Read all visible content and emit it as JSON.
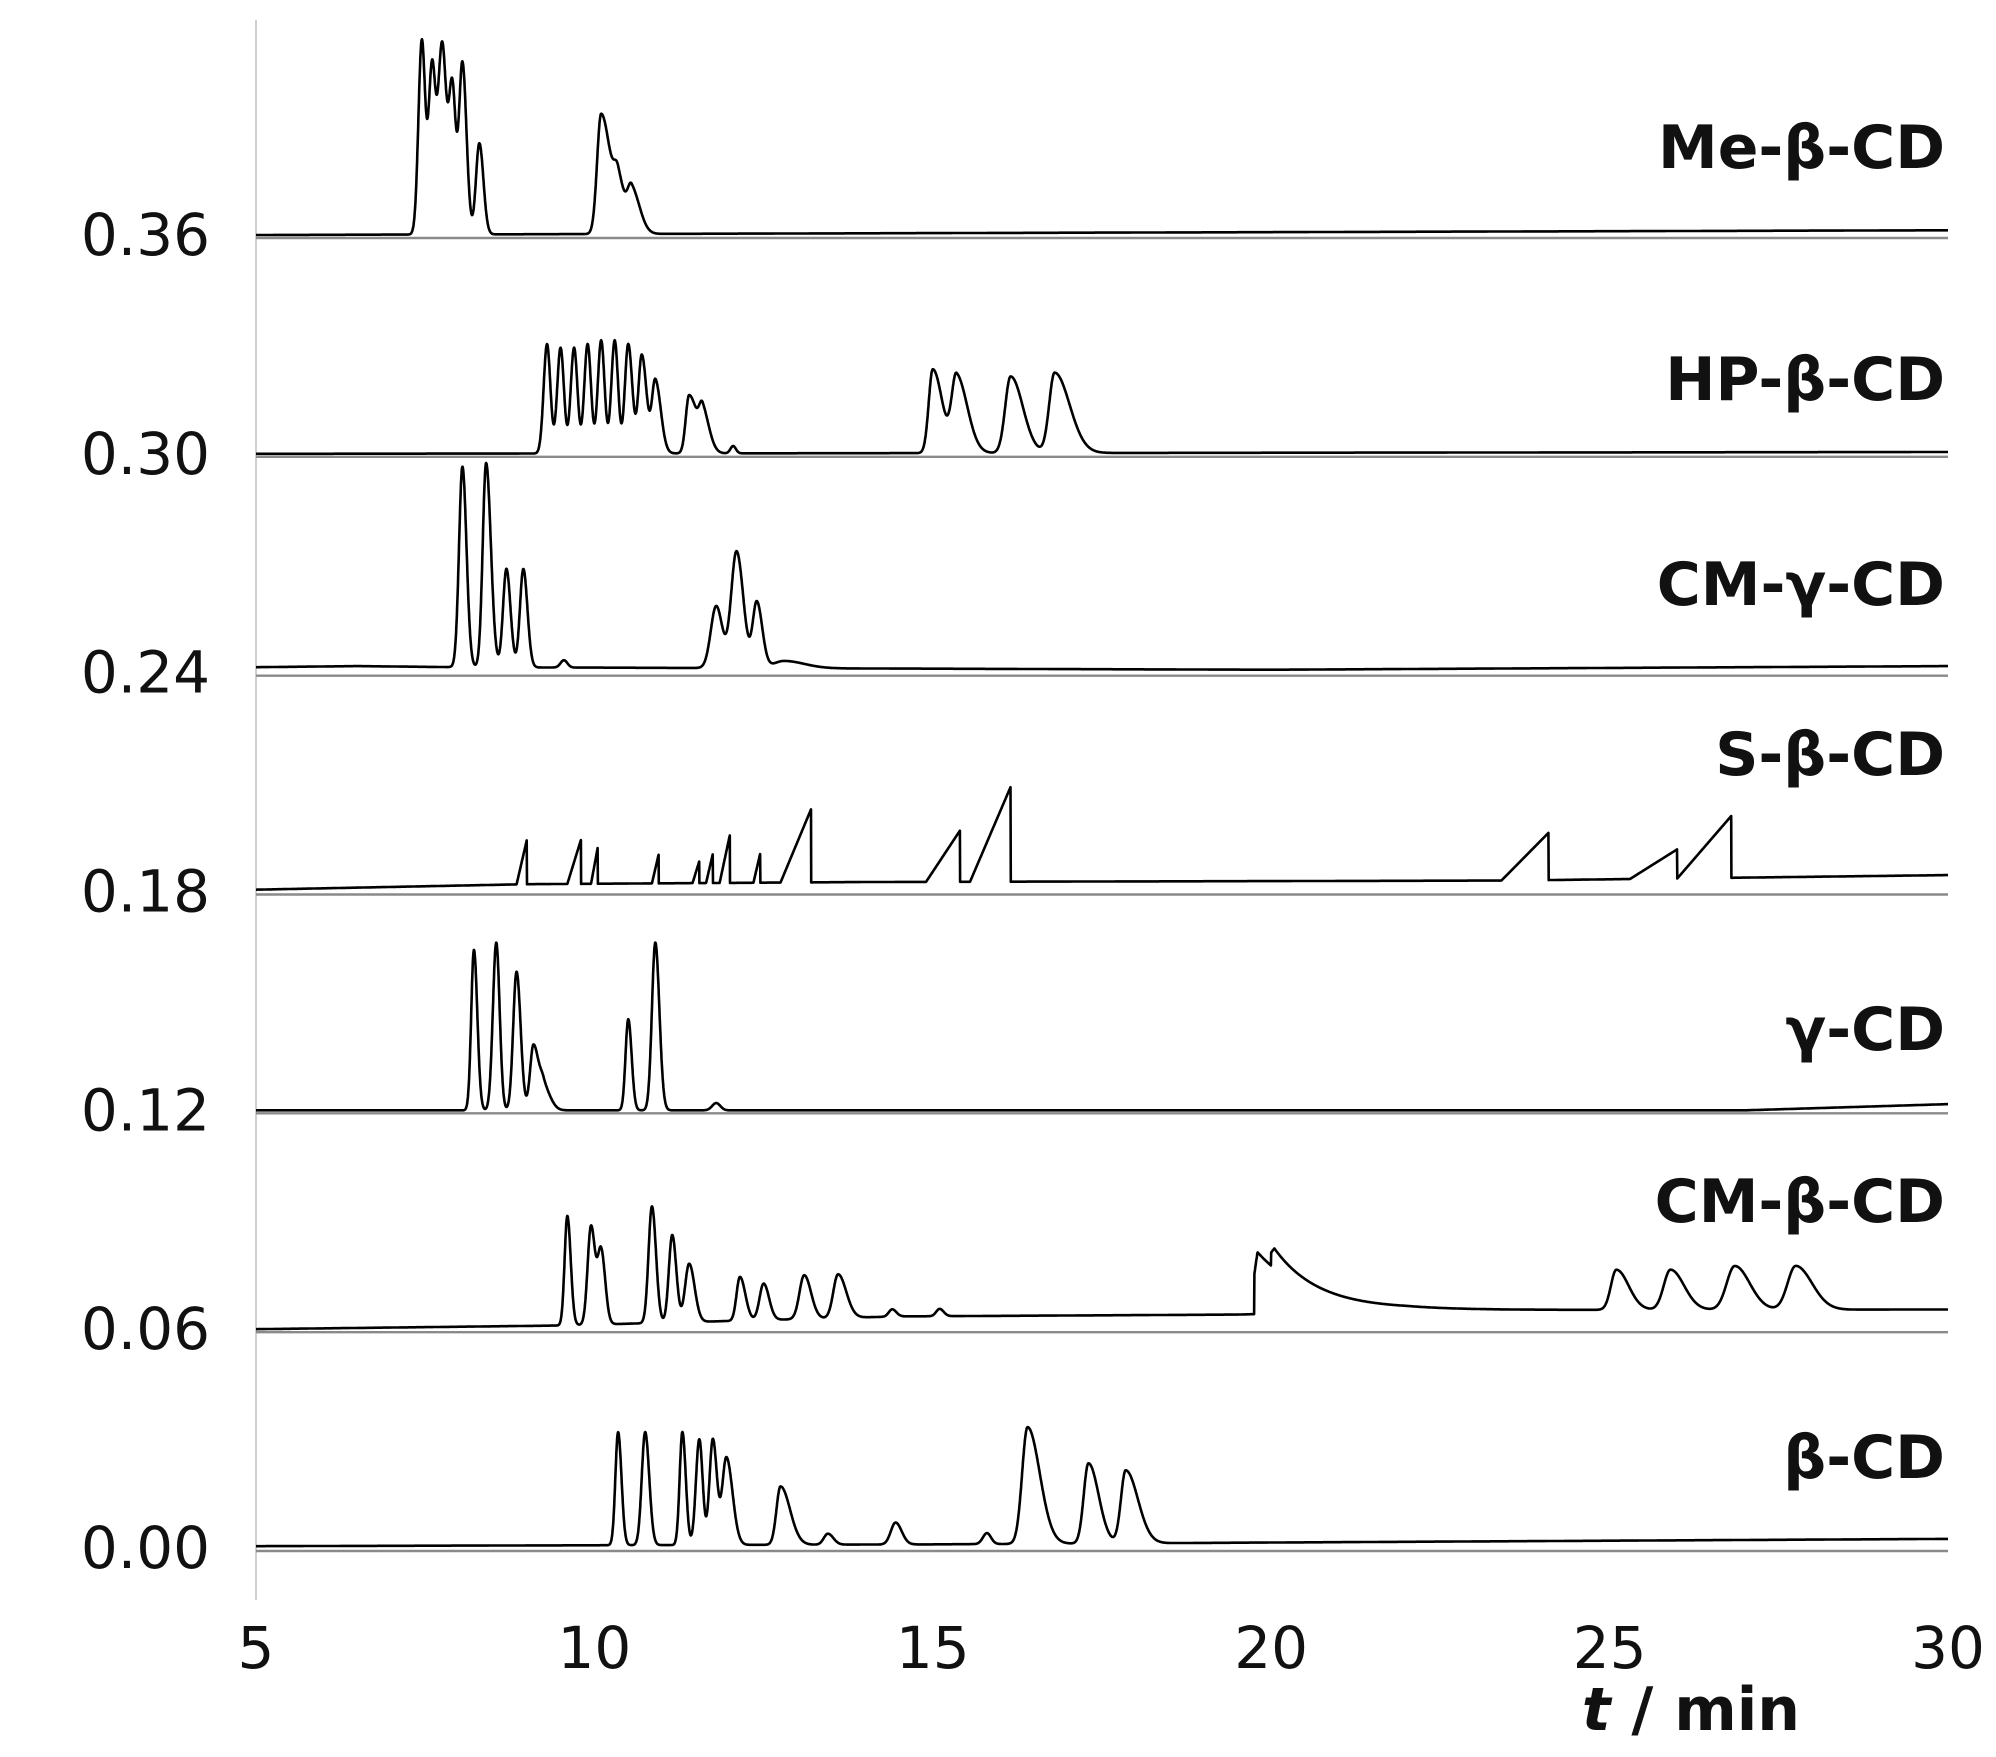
{
  "chart_data": {
    "type": "line",
    "title": "",
    "xlabel_italic": "t",
    "xlabel_rest": " / min",
    "ylabel": "",
    "xlim": [
      5,
      30
    ],
    "ylim": [
      -0.004,
      0.42
    ],
    "x_ticks": [
      5,
      10,
      15,
      20,
      25,
      30
    ],
    "x_tick_labels": [
      "5",
      "10",
      "15",
      "20",
      "25",
      "30"
    ],
    "y_ticks": [
      0.0,
      0.06,
      0.12,
      0.18,
      0.24,
      0.3,
      0.36
    ],
    "y_tick_labels": [
      "0.00",
      "0.06",
      "0.12",
      "0.18",
      "0.24",
      "0.30",
      "0.36"
    ],
    "grid": false,
    "legend": "none",
    "series": [
      {
        "name": "Me-β-CD",
        "offset": 0.36,
        "baseline": [
          [
            5,
            0.36
          ],
          [
            30,
            0.3613
          ]
        ],
        "peaks": [
          [
            7.45,
            0.053,
            0.05,
            0.05
          ],
          [
            7.75,
            0.052,
            0.06,
            0.06
          ],
          [
            8.05,
            0.047,
            0.05,
            0.06
          ],
          [
            8.3,
            0.025,
            0.05,
            0.06
          ],
          [
            7.6,
            0.045,
            0.05,
            0.05
          ],
          [
            7.9,
            0.04,
            0.05,
            0.05
          ],
          [
            10.1,
            0.033,
            0.06,
            0.14
          ],
          [
            10.35,
            0.012,
            0.06,
            0.1
          ],
          [
            10.55,
            0.012,
            0.06,
            0.12
          ]
        ]
      },
      {
        "name": "HP-β-CD",
        "offset": 0.3,
        "baseline": [
          [
            5,
            0.3
          ],
          [
            30,
            0.3005
          ]
        ],
        "peaks": [
          [
            9.3,
            0.03,
            0.05,
            0.05
          ],
          [
            9.5,
            0.029,
            0.05,
            0.05
          ],
          [
            9.7,
            0.029,
            0.05,
            0.05
          ],
          [
            9.9,
            0.03,
            0.05,
            0.05
          ],
          [
            10.1,
            0.031,
            0.05,
            0.05
          ],
          [
            10.3,
            0.031,
            0.05,
            0.05
          ],
          [
            10.5,
            0.03,
            0.05,
            0.06
          ],
          [
            10.7,
            0.027,
            0.05,
            0.07
          ],
          [
            10.9,
            0.02,
            0.05,
            0.08
          ],
          [
            11.4,
            0.016,
            0.05,
            0.12
          ],
          [
            11.6,
            0.01,
            0.05,
            0.1
          ],
          [
            12.05,
            0.002,
            0.04,
            0.04
          ],
          [
            15.0,
            0.023,
            0.06,
            0.14
          ],
          [
            15.35,
            0.021,
            0.07,
            0.16
          ],
          [
            16.15,
            0.021,
            0.08,
            0.18
          ],
          [
            16.8,
            0.022,
            0.08,
            0.22
          ]
        ]
      },
      {
        "name": "CM-γ-CD",
        "offset": 0.24,
        "baseline": [
          [
            5,
            0.2415
          ],
          [
            6.5,
            0.2418
          ],
          [
            8.0,
            0.2415
          ],
          [
            20,
            0.2408
          ],
          [
            30,
            0.2418
          ]
        ],
        "peaks": [
          [
            8.05,
            0.055,
            0.05,
            0.06
          ],
          [
            8.4,
            0.056,
            0.05,
            0.07
          ],
          [
            8.7,
            0.027,
            0.05,
            0.06
          ],
          [
            8.95,
            0.027,
            0.05,
            0.06
          ],
          [
            9.55,
            0.002,
            0.05,
            0.05
          ],
          [
            11.8,
            0.017,
            0.08,
            0.09
          ],
          [
            12.1,
            0.032,
            0.08,
            0.1
          ],
          [
            12.4,
            0.018,
            0.06,
            0.08
          ],
          [
            12.8,
            0.002,
            0.15,
            0.3
          ]
        ]
      },
      {
        "name": "S-β-CD",
        "offset": 0.18,
        "baseline": [
          [
            5,
            0.1805
          ],
          [
            9,
            0.182
          ],
          [
            14,
            0.1826
          ],
          [
            23.5,
            0.183
          ],
          [
            30,
            0.1845
          ]
        ],
        "ramps": [
          [
            8.85,
            9.0,
            0.012
          ],
          [
            9.6,
            9.8,
            0.012
          ],
          [
            9.95,
            10.05,
            0.01
          ],
          [
            10.85,
            10.95,
            0.008
          ],
          [
            11.45,
            11.55,
            0.006
          ],
          [
            11.65,
            11.75,
            0.008
          ],
          [
            11.85,
            12.0,
            0.013
          ],
          [
            12.35,
            12.45,
            0.008
          ],
          [
            12.75,
            13.2,
            0.02
          ],
          [
            14.9,
            15.4,
            0.014
          ],
          [
            15.55,
            16.15,
            0.026
          ],
          [
            23.4,
            24.1,
            0.013
          ],
          [
            25.3,
            26.0,
            0.008
          ],
          [
            26.0,
            26.8,
            0.017
          ]
        ]
      },
      {
        "name": "γ-CD",
        "offset": 0.12,
        "baseline": [
          [
            5,
            0.12
          ],
          [
            27,
            0.12
          ],
          [
            30,
            0.1217
          ]
        ],
        "peaks": [
          [
            8.22,
            0.044,
            0.04,
            0.05
          ],
          [
            8.55,
            0.046,
            0.05,
            0.05
          ],
          [
            8.85,
            0.038,
            0.05,
            0.06
          ],
          [
            9.1,
            0.018,
            0.05,
            0.08
          ],
          [
            9.25,
            0.006,
            0.05,
            0.1
          ],
          [
            10.5,
            0.025,
            0.04,
            0.05
          ],
          [
            10.9,
            0.046,
            0.05,
            0.06
          ],
          [
            11.8,
            0.002,
            0.06,
            0.06
          ]
        ]
      },
      {
        "name": "CM-β-CD",
        "offset": 0.06,
        "baseline": [
          [
            5,
            0.06
          ],
          [
            9.5,
            0.061
          ],
          [
            14.5,
            0.0635
          ],
          [
            19.5,
            0.064
          ],
          [
            22,
            0.0652
          ],
          [
            30,
            0.0654
          ]
        ],
        "peaks": [
          [
            9.6,
            0.03,
            0.04,
            0.05
          ],
          [
            9.95,
            0.027,
            0.05,
            0.06
          ],
          [
            10.1,
            0.02,
            0.05,
            0.06
          ],
          [
            10.85,
            0.032,
            0.05,
            0.06
          ],
          [
            11.15,
            0.024,
            0.05,
            0.06
          ],
          [
            11.4,
            0.016,
            0.06,
            0.08
          ],
          [
            12.15,
            0.012,
            0.05,
            0.08
          ],
          [
            12.5,
            0.01,
            0.06,
            0.08
          ],
          [
            13.1,
            0.012,
            0.07,
            0.1
          ],
          [
            13.6,
            0.012,
            0.07,
            0.12
          ],
          [
            14.4,
            0.002,
            0.05,
            0.06
          ],
          [
            15.1,
            0.002,
            0.05,
            0.06
          ],
          [
            25.1,
            0.011,
            0.08,
            0.18
          ],
          [
            25.9,
            0.011,
            0.1,
            0.2
          ],
          [
            26.85,
            0.012,
            0.12,
            0.22
          ],
          [
            27.75,
            0.012,
            0.12,
            0.24
          ]
        ],
        "ramps": [
          [
            19.7,
            19.8,
            0.0
          ]
        ],
        "tails": [
          [
            19.75,
            0.018,
            0.8
          ],
          [
            20.0,
            0.006,
            0.5
          ]
        ]
      },
      {
        "name": "β-CD",
        "offset": 0.0,
        "baseline": [
          [
            5,
            0.0005
          ],
          [
            15,
            0.001
          ],
          [
            20,
            0.0015
          ],
          [
            30,
            0.0025
          ]
        ],
        "peaks": [
          [
            10.35,
            0.031,
            0.04,
            0.05
          ],
          [
            10.75,
            0.031,
            0.05,
            0.06
          ],
          [
            11.3,
            0.031,
            0.04,
            0.05
          ],
          [
            11.55,
            0.029,
            0.05,
            0.05
          ],
          [
            11.75,
            0.029,
            0.05,
            0.06
          ],
          [
            11.95,
            0.024,
            0.06,
            0.09
          ],
          [
            12.75,
            0.016,
            0.06,
            0.14
          ],
          [
            13.45,
            0.003,
            0.06,
            0.08
          ],
          [
            14.45,
            0.006,
            0.07,
            0.09
          ],
          [
            15.8,
            0.003,
            0.06,
            0.06
          ],
          [
            16.4,
            0.032,
            0.08,
            0.18
          ],
          [
            17.3,
            0.022,
            0.07,
            0.15
          ],
          [
            17.85,
            0.02,
            0.07,
            0.18
          ]
        ]
      }
    ]
  }
}
